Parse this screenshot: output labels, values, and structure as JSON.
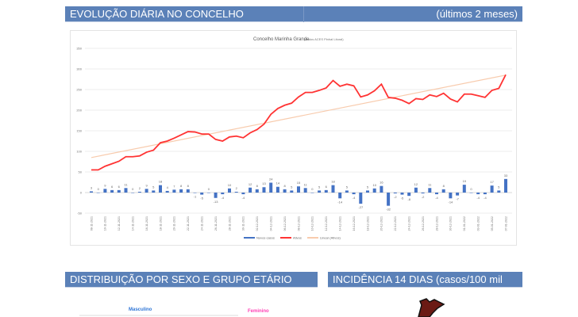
{
  "header": {
    "title": "EVOLUÇÃO DIÁRIA NO CONCELHO",
    "period": "(últimos 2 meses)"
  },
  "sections": {
    "distribution": "DISTRIBUIÇÃO POR SEXO E GRUPO ETÁRIO",
    "incidence": "INCIDÊNCIA 14 DIAS (casos/100 mil hab)"
  },
  "distribution": {
    "male": "Masculino",
    "female": "Feminino"
  },
  "colors": {
    "bars": "#4472c4",
    "line": "#ff3333",
    "trend": "#f8cbad",
    "header": "#5b81b8",
    "map": "#6b1a14",
    "male": "#2e75d6",
    "female": "#ff3fb4"
  },
  "chart_data": {
    "type": "bar+line",
    "title": "Concelho Marinha Grande",
    "subtitle": "(dados ACES Pinhal Litoral)",
    "ylim": [
      -50,
      350
    ],
    "yticks": [
      -50,
      0,
      50,
      100,
      150,
      200,
      250,
      300,
      350
    ],
    "x_labels": [
      "08-11-2021",
      "10-11-2021",
      "12-11-2021",
      "14-11-2021",
      "16-11-2021",
      "18-11-2021",
      "20-11-2021",
      "22-11-2021",
      "24-11-2021",
      "26-11-2021",
      "28-11-2021",
      "30-11-2021",
      "02-12-2021",
      "04-12-2021",
      "06-12-2021",
      "08-12-2021",
      "10-12-2021",
      "12-12-2021",
      "14-12-2021",
      "16-12-2021",
      "18-12-2021",
      "20-12-2021",
      "22-12-2021",
      "24-12-2021",
      "26-12-2021",
      "28-12-2021",
      "30-12-2021",
      "01-01-2022",
      "03-01-2022",
      "05-01-2022",
      "07-01-2022"
    ],
    "legend": [
      "Novos casos",
      "Ativos",
      "Linear (Ativos)"
    ],
    "legend_position": "bottom",
    "series": [
      {
        "name": "Novos casos",
        "type": "bar",
        "values": [
          3,
          0,
          9,
          6,
          6,
          11,
          0,
          2,
          9,
          5,
          18,
          4,
          7,
          8,
          8,
          -1,
          -5,
          0,
          -13,
          -4,
          10,
          2,
          -4,
          12,
          8,
          13,
          24,
          14,
          8,
          5,
          15,
          11,
          0,
          5,
          6,
          18,
          -14,
          5,
          -4,
          -27,
          5,
          10,
          16,
          -32,
          -2,
          -5,
          -8,
          12,
          -2,
          11,
          -4,
          8,
          -14,
          -7,
          19,
          0,
          -4,
          -4,
          17,
          5,
          33
        ]
      },
      {
        "name": "Ativos",
        "type": "line",
        "values": [
          55,
          55,
          64,
          70,
          76,
          87,
          87,
          89,
          98,
          103,
          121,
          125,
          132,
          140,
          148,
          147,
          142,
          142,
          129,
          125,
          135,
          137,
          133,
          145,
          153,
          166,
          190,
          204,
          212,
          217,
          232,
          243,
          243,
          248,
          254,
          272,
          258,
          263,
          259,
          232,
          237,
          247,
          263,
          231,
          229,
          224,
          216,
          228,
          226,
          237,
          233,
          241,
          227,
          220,
          239,
          239,
          235,
          231,
          248,
          253,
          286
        ]
      },
      {
        "name": "Linear (Ativos)",
        "type": "trend",
        "values": [
          85,
          285
        ]
      }
    ]
  }
}
